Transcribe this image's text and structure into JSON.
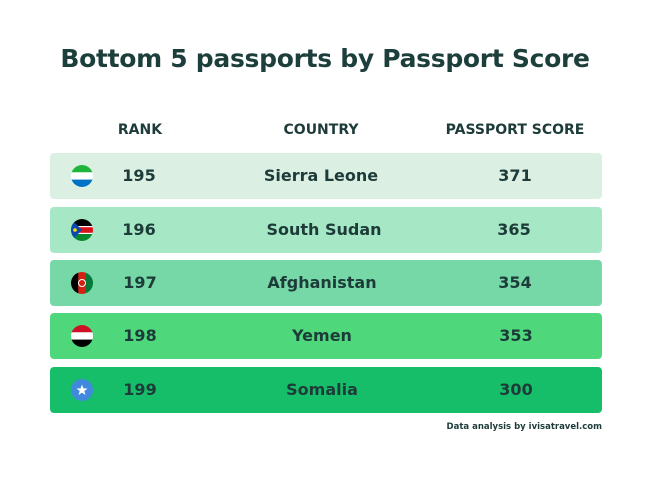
{
  "header": {
    "title": "Bottom 5 passports by Passport Score"
  },
  "table": {
    "columns": [
      "RANK",
      "COUNTRY",
      "PASSPORT SCORE"
    ],
    "rows": [
      [
        "195",
        "Sierra Leone",
        "371"
      ],
      [
        "196",
        "South Sudan",
        "365"
      ],
      [
        "197",
        "Afghanistan",
        "354"
      ],
      [
        "198",
        "Yemen",
        "353"
      ],
      [
        "199",
        "Somalia",
        "300"
      ]
    ]
  },
  "footer": {
    "note": "Data analysis by ivisatravel.com"
  }
}
